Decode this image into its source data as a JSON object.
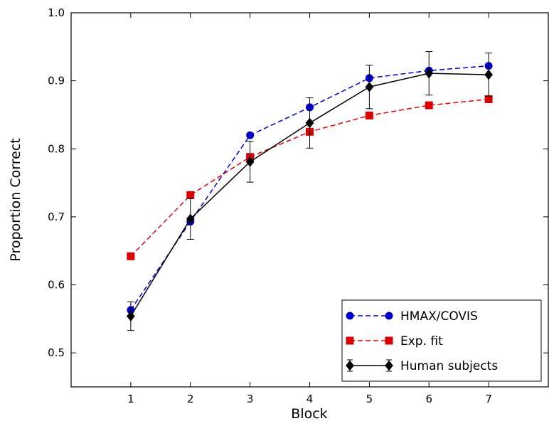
{
  "chart_data": {
    "type": "line",
    "xlabel": "Block",
    "ylabel": "Proportion Correct",
    "xlim": [
      0,
      8
    ],
    "ylim": [
      0.45,
      1.0
    ],
    "x_ticks": [
      1,
      2,
      3,
      4,
      5,
      6,
      7
    ],
    "y_ticks": [
      0.5,
      0.6,
      0.7,
      0.8,
      0.9,
      1.0
    ],
    "y_tick_labels": [
      "0.5",
      "0.6",
      "0.7",
      "0.8",
      "0.9",
      "1.0"
    ],
    "grid": false,
    "legend_position": "bottom-right",
    "x": [
      1,
      2,
      3,
      4,
      5,
      6,
      7
    ],
    "series": [
      {
        "name": "HMAX/COVIS",
        "color": "#0000cc",
        "line_style": "dashed",
        "marker": "circle",
        "values": [
          0.563,
          0.693,
          0.82,
          0.861,
          0.904,
          0.915,
          0.922
        ]
      },
      {
        "name": "Exp. fit",
        "color": "#dd0000",
        "line_style": "dashed",
        "marker": "square",
        "values": [
          0.642,
          0.732,
          0.788,
          0.825,
          0.849,
          0.864,
          0.873
        ]
      },
      {
        "name": "Human subjects",
        "color": "#000000",
        "line_style": "solid",
        "marker": "diamond",
        "values": [
          0.554,
          0.697,
          0.781,
          0.838,
          0.891,
          0.911,
          0.909
        ],
        "errors": [
          0.021,
          0.03,
          0.03,
          0.037,
          0.032,
          0.032,
          0.032
        ]
      }
    ]
  }
}
